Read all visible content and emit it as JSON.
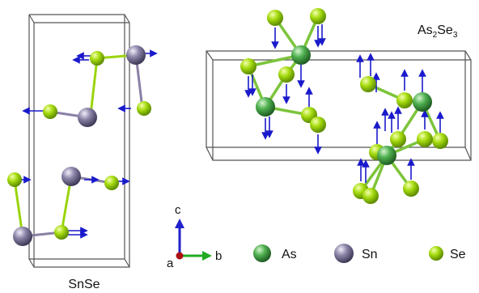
{
  "labels": {
    "snse": "SnSe",
    "as2se3_base": "As",
    "as2se3_sub1": "2",
    "as2se3_mid": "Se",
    "as2se3_sub2": "3"
  },
  "axes": {
    "c": "c",
    "b": "b",
    "a": "a"
  },
  "legend": [
    {
      "label": "As",
      "color": "#4aa84a"
    },
    {
      "label": "Sn",
      "color": "#8a80a6"
    },
    {
      "label": "Se",
      "color": "#9bd40c"
    }
  ],
  "colors": {
    "as": "#4aa84a",
    "sn": "#8a80a6",
    "se": "#9bd40c",
    "arrow": "#1a1acc",
    "axis_c": "#2222cc",
    "axis_b": "#22aa22",
    "axis_a": "#aa1111"
  }
}
